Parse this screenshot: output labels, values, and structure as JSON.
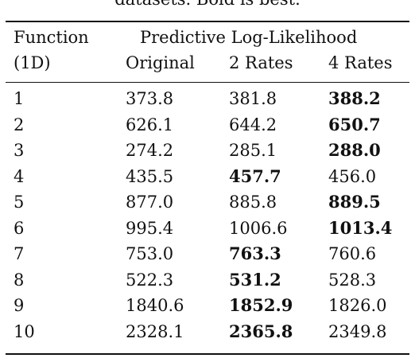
{
  "caption_fragment": "datasets. Bold is best.",
  "header": {
    "col0_line1": "Function",
    "col0_line2": "(1D)",
    "group_label": "Predictive Log-Likelihood",
    "subcols": [
      "Original",
      "2 Rates",
      "4 Rates"
    ]
  },
  "rows": [
    {
      "fn": "1",
      "original": "373.8",
      "rates2": "381.8",
      "rates4": "388.2",
      "best": "rates4"
    },
    {
      "fn": "2",
      "original": "626.1",
      "rates2": "644.2",
      "rates4": "650.7",
      "best": "rates4"
    },
    {
      "fn": "3",
      "original": "274.2",
      "rates2": "285.1",
      "rates4": "288.0",
      "best": "rates4"
    },
    {
      "fn": "4",
      "original": "435.5",
      "rates2": "457.7",
      "rates4": "456.0",
      "best": "rates2"
    },
    {
      "fn": "5",
      "original": "877.0",
      "rates2": "885.8",
      "rates4": "889.5",
      "best": "rates4"
    },
    {
      "fn": "6",
      "original": "995.4",
      "rates2": "1006.6",
      "rates4": "1013.4",
      "best": "rates4"
    },
    {
      "fn": "7",
      "original": "753.0",
      "rates2": "763.3",
      "rates4": "760.6",
      "best": "rates2"
    },
    {
      "fn": "8",
      "original": "522.3",
      "rates2": "531.2",
      "rates4": "528.3",
      "best": "rates2"
    },
    {
      "fn": "9",
      "original": "1840.6",
      "rates2": "1852.9",
      "rates4": "1826.0",
      "best": "rates2"
    },
    {
      "fn": "10",
      "original": "2328.1",
      "rates2": "2365.8",
      "rates4": "2349.8",
      "best": "rates2"
    }
  ]
}
